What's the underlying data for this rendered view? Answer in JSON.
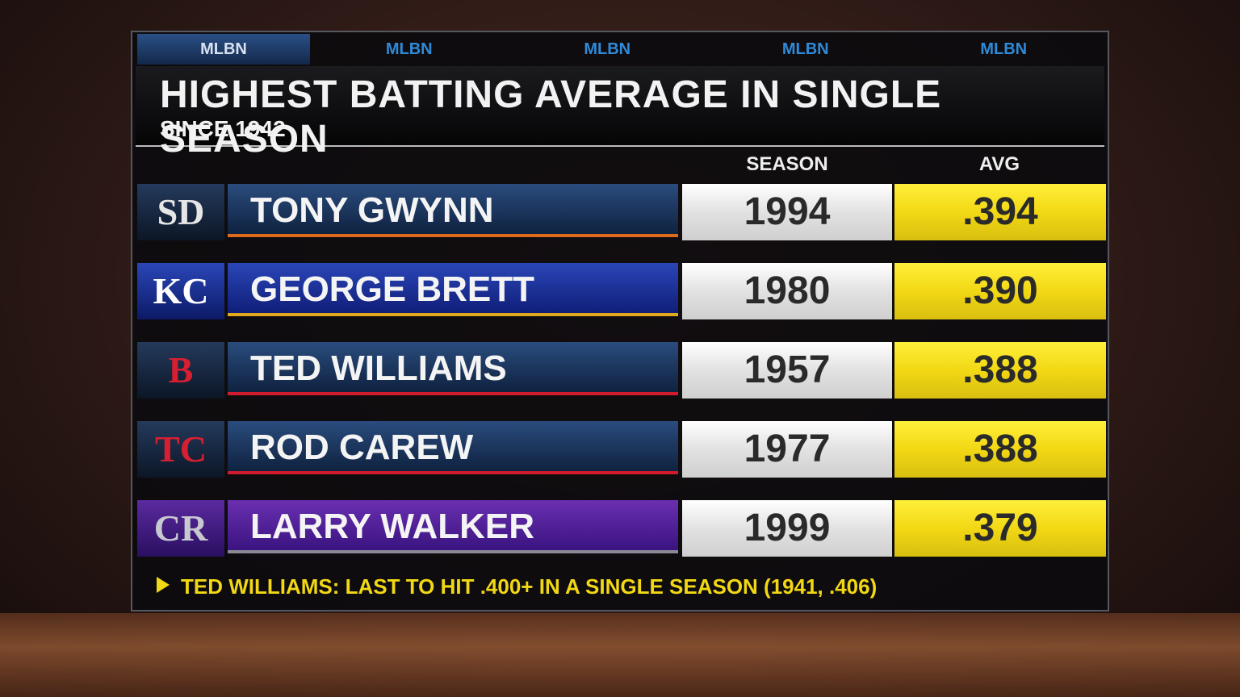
{
  "tabs": [
    "MLBN",
    "MLBN",
    "MLBN",
    "MLBN",
    "MLBN"
  ],
  "title": "HIGHEST BATTING AVERAGE IN SINGLE SEASON",
  "subtitle": "SINCE 1942",
  "columns": [
    "SEASON",
    "AVG"
  ],
  "rows": [
    {
      "logo": "SD",
      "player": "TONY GWYNN",
      "season": "1994",
      "avg": ".394"
    },
    {
      "logo": "KC",
      "player": "GEORGE BRETT",
      "season": "1980",
      "avg": ".390"
    },
    {
      "logo": "B",
      "player": "TED WILLIAMS",
      "season": "1957",
      "avg": ".388"
    },
    {
      "logo": "TC",
      "player": "ROD CAREW",
      "season": "1977",
      "avg": ".388"
    },
    {
      "logo": "CR",
      "player": "LARRY WALKER",
      "season": "1999",
      "avg": ".379"
    }
  ],
  "footnote": "TED WILLIAMS: LAST TO HIT .400+ IN A SINGLE SEASON (1941, .406)"
}
